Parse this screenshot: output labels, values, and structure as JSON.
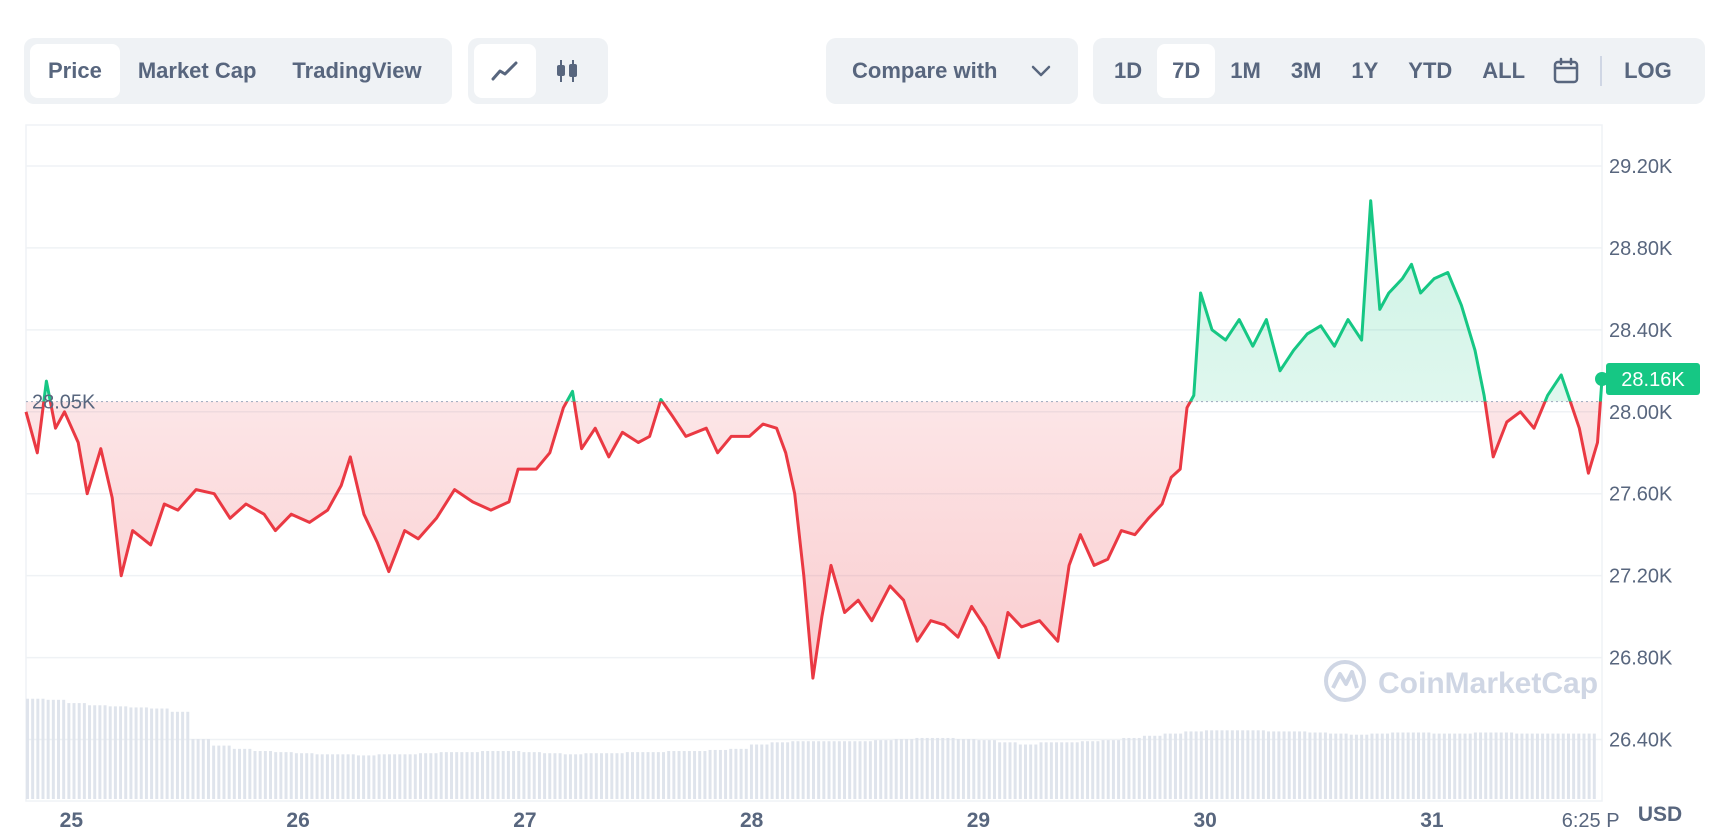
{
  "toolbar": {
    "chart_types": [
      {
        "label": "Price",
        "active": true
      },
      {
        "label": "Market Cap",
        "active": false
      },
      {
        "label": "TradingView",
        "active": false
      }
    ],
    "style_icons": [
      "line-chart-icon",
      "candlestick-icon"
    ],
    "compare_label": "Compare with",
    "ranges": [
      {
        "label": "1D",
        "active": false
      },
      {
        "label": "7D",
        "active": true
      },
      {
        "label": "1M",
        "active": false
      },
      {
        "label": "3M",
        "active": false
      },
      {
        "label": "1Y",
        "active": false
      },
      {
        "label": "YTD",
        "active": false
      },
      {
        "label": "ALL",
        "active": false
      }
    ],
    "log_label": "LOG"
  },
  "watermark": "CoinMarketCap",
  "colors": {
    "up": "#16c784",
    "down": "#ea3943",
    "text": "#58667e",
    "grid": "#eff2f5"
  },
  "chart_data": {
    "type": "line",
    "currency_label": "USD",
    "baseline": 28050,
    "baseline_label": "28.05K",
    "current_price": 28160,
    "current_label": "28.16K",
    "ylim": [
      26100,
      29400
    ],
    "yticks": [
      {
        "value": 29200,
        "label": "29.20K"
      },
      {
        "value": 28800,
        "label": "28.80K"
      },
      {
        "value": 28400,
        "label": "28.40K"
      },
      {
        "value": 28000,
        "label": "28.00K"
      },
      {
        "value": 27600,
        "label": "27.60K"
      },
      {
        "value": 27200,
        "label": "27.20K"
      },
      {
        "value": 26800,
        "label": "26.80K"
      },
      {
        "value": 26400,
        "label": "26.40K"
      }
    ],
    "xlim": [
      24.95,
      31.9
    ],
    "xticks": [
      {
        "value": 25.15,
        "label": "25"
      },
      {
        "value": 26.15,
        "label": "26"
      },
      {
        "value": 27.15,
        "label": "27"
      },
      {
        "value": 28.15,
        "label": "28"
      },
      {
        "value": 29.15,
        "label": "29"
      },
      {
        "value": 30.15,
        "label": "30"
      },
      {
        "value": 31.15,
        "label": "31"
      },
      {
        "value": 31.85,
        "label": "6:25 P"
      }
    ],
    "price": [
      [
        24.95,
        28000
      ],
      [
        25.0,
        27800
      ],
      [
        25.04,
        28150
      ],
      [
        25.08,
        27920
      ],
      [
        25.12,
        28000
      ],
      [
        25.18,
        27850
      ],
      [
        25.22,
        27600
      ],
      [
        25.28,
        27820
      ],
      [
        25.33,
        27580
      ],
      [
        25.37,
        27200
      ],
      [
        25.42,
        27420
      ],
      [
        25.5,
        27350
      ],
      [
        25.56,
        27550
      ],
      [
        25.62,
        27520
      ],
      [
        25.7,
        27620
      ],
      [
        25.78,
        27600
      ],
      [
        25.85,
        27480
      ],
      [
        25.92,
        27550
      ],
      [
        26.0,
        27500
      ],
      [
        26.05,
        27420
      ],
      [
        26.12,
        27500
      ],
      [
        26.2,
        27460
      ],
      [
        26.28,
        27520
      ],
      [
        26.34,
        27640
      ],
      [
        26.38,
        27780
      ],
      [
        26.44,
        27500
      ],
      [
        26.5,
        27360
      ],
      [
        26.55,
        27220
      ],
      [
        26.62,
        27420
      ],
      [
        26.68,
        27380
      ],
      [
        26.76,
        27480
      ],
      [
        26.84,
        27620
      ],
      [
        26.92,
        27560
      ],
      [
        27.0,
        27520
      ],
      [
        27.08,
        27560
      ],
      [
        27.12,
        27720
      ],
      [
        27.2,
        27720
      ],
      [
        27.26,
        27800
      ],
      [
        27.32,
        28020
      ],
      [
        27.36,
        28100
      ],
      [
        27.4,
        27820
      ],
      [
        27.46,
        27920
      ],
      [
        27.52,
        27780
      ],
      [
        27.58,
        27900
      ],
      [
        27.65,
        27850
      ],
      [
        27.7,
        27880
      ],
      [
        27.75,
        28060
      ],
      [
        27.8,
        27980
      ],
      [
        27.86,
        27880
      ],
      [
        27.95,
        27920
      ],
      [
        28.0,
        27800
      ],
      [
        28.06,
        27880
      ],
      [
        28.14,
        27880
      ],
      [
        28.2,
        27940
      ],
      [
        28.26,
        27920
      ],
      [
        28.3,
        27800
      ],
      [
        28.34,
        27600
      ],
      [
        28.38,
        27200
      ],
      [
        28.42,
        26700
      ],
      [
        28.46,
        27000
      ],
      [
        28.5,
        27250
      ],
      [
        28.56,
        27020
      ],
      [
        28.62,
        27080
      ],
      [
        28.68,
        26980
      ],
      [
        28.76,
        27150
      ],
      [
        28.82,
        27080
      ],
      [
        28.88,
        26880
      ],
      [
        28.94,
        26980
      ],
      [
        29.0,
        26960
      ],
      [
        29.06,
        26900
      ],
      [
        29.12,
        27050
      ],
      [
        29.18,
        26950
      ],
      [
        29.24,
        26800
      ],
      [
        29.28,
        27020
      ],
      [
        29.34,
        26950
      ],
      [
        29.42,
        26980
      ],
      [
        29.5,
        26880
      ],
      [
        29.55,
        27250
      ],
      [
        29.6,
        27400
      ],
      [
        29.66,
        27250
      ],
      [
        29.72,
        27280
      ],
      [
        29.78,
        27420
      ],
      [
        29.84,
        27400
      ],
      [
        29.9,
        27480
      ],
      [
        29.96,
        27550
      ],
      [
        30.0,
        27680
      ],
      [
        30.04,
        27720
      ],
      [
        30.07,
        28020
      ],
      [
        30.1,
        28080
      ],
      [
        30.13,
        28580
      ],
      [
        30.18,
        28400
      ],
      [
        30.24,
        28350
      ],
      [
        30.3,
        28450
      ],
      [
        30.36,
        28320
      ],
      [
        30.42,
        28450
      ],
      [
        30.48,
        28200
      ],
      [
        30.54,
        28300
      ],
      [
        30.6,
        28380
      ],
      [
        30.66,
        28420
      ],
      [
        30.72,
        28320
      ],
      [
        30.78,
        28450
      ],
      [
        30.84,
        28350
      ],
      [
        30.88,
        29030
      ],
      [
        30.92,
        28500
      ],
      [
        30.96,
        28580
      ],
      [
        31.02,
        28650
      ],
      [
        31.06,
        28720
      ],
      [
        31.1,
        28580
      ],
      [
        31.16,
        28650
      ],
      [
        31.22,
        28680
      ],
      [
        31.28,
        28520
      ],
      [
        31.34,
        28300
      ],
      [
        31.38,
        28080
      ],
      [
        31.42,
        27780
      ],
      [
        31.48,
        27950
      ],
      [
        31.54,
        28000
      ],
      [
        31.6,
        27920
      ],
      [
        31.66,
        28080
      ],
      [
        31.72,
        28180
      ],
      [
        31.76,
        28050
      ],
      [
        31.8,
        27920
      ],
      [
        31.84,
        27700
      ],
      [
        31.88,
        27850
      ],
      [
        31.9,
        28160
      ]
    ],
    "volume": [
      0.92,
      0.91,
      0.88,
      0.86,
      0.85,
      0.84,
      0.83,
      0.8,
      0.55,
      0.49,
      0.46,
      0.44,
      0.43,
      0.42,
      0.41,
      0.41,
      0.4,
      0.41,
      0.41,
      0.42,
      0.43,
      0.43,
      0.44,
      0.44,
      0.43,
      0.42,
      0.41,
      0.42,
      0.42,
      0.43,
      0.43,
      0.44,
      0.44,
      0.45,
      0.46,
      0.5,
      0.52,
      0.53,
      0.53,
      0.53,
      0.53,
      0.54,
      0.55,
      0.56,
      0.56,
      0.55,
      0.54,
      0.52,
      0.5,
      0.52,
      0.52,
      0.53,
      0.54,
      0.56,
      0.58,
      0.6,
      0.62,
      0.63,
      0.63,
      0.63,
      0.62,
      0.62,
      0.61,
      0.6,
      0.59,
      0.6,
      0.61,
      0.61,
      0.6,
      0.6,
      0.61,
      0.61,
      0.6,
      0.6,
      0.6,
      0.6
    ]
  }
}
